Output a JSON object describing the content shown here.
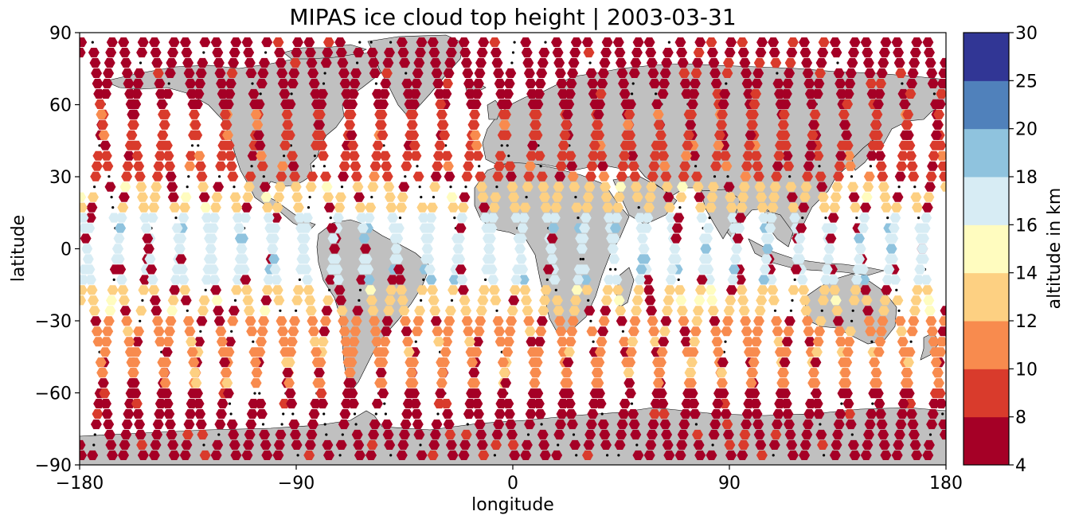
{
  "chart_data": {
    "type": "scatter",
    "title": "MIPAS ice cloud top height | 2003-03-31",
    "xlabel": "longitude",
    "ylabel": "latitude",
    "xlim": [
      -180,
      180
    ],
    "ylim": [
      -90,
      90
    ],
    "xticks": [
      -180,
      -90,
      0,
      90,
      180
    ],
    "yticks": [
      -90,
      -60,
      -30,
      0,
      30,
      60,
      90
    ],
    "xtick_labels": [
      "−180",
      "−90",
      "0",
      "90",
      "180"
    ],
    "ytick_labels": [
      "−90",
      "−60",
      "−30",
      "0",
      "30",
      "60",
      "90"
    ],
    "grid": false,
    "background_map": "world coastlines, land shaded grey",
    "land_color": "#c0c0c0",
    "marker": "hexagon",
    "nodata_marker": "small black dots",
    "colorbar": {
      "label": "altitude in km",
      "boundaries": [
        4,
        8,
        10,
        12,
        14,
        16,
        18,
        20,
        25,
        30
      ],
      "tick_labels": [
        "4",
        "8",
        "10",
        "12",
        "14",
        "16",
        "18",
        "20",
        "25",
        "30"
      ],
      "colors": [
        "#a50026",
        "#d73027",
        "#f46d43",
        "#fdae61",
        "#fee090",
        "#e0f3f8",
        "#abd9e9",
        "#74add1",
        "#313695"
      ],
      "display_colors": [
        "#a50026",
        "#d93b2c",
        "#f88b4e",
        "#fdd082",
        "#fffcbf",
        "#d7ecf4",
        "#8fc3de",
        "#5081bb",
        "#313695"
      ]
    },
    "tracks": {
      "orbit_count": 28,
      "orbit_spacing_deg": 12.86,
      "reference_longitude": 3,
      "lat_spacing_deg": 4.3,
      "band_altitude_km": [
        {
          "lat_range": [
            60,
            90
          ],
          "altitude": 6
        },
        {
          "lat_range": [
            30,
            60
          ],
          "altitude": 9
        },
        {
          "lat_range": [
            15,
            30
          ],
          "altitude": 12.5
        },
        {
          "lat_range": [
            -15,
            15
          ],
          "altitude": 16.5
        },
        {
          "lat_range": [
            -30,
            -15
          ],
          "altitude": 13
        },
        {
          "lat_range": [
            -60,
            -30
          ],
          "altitude": 10
        },
        {
          "lat_range": [
            -90,
            -60
          ],
          "altitude": 7
        }
      ]
    }
  }
}
